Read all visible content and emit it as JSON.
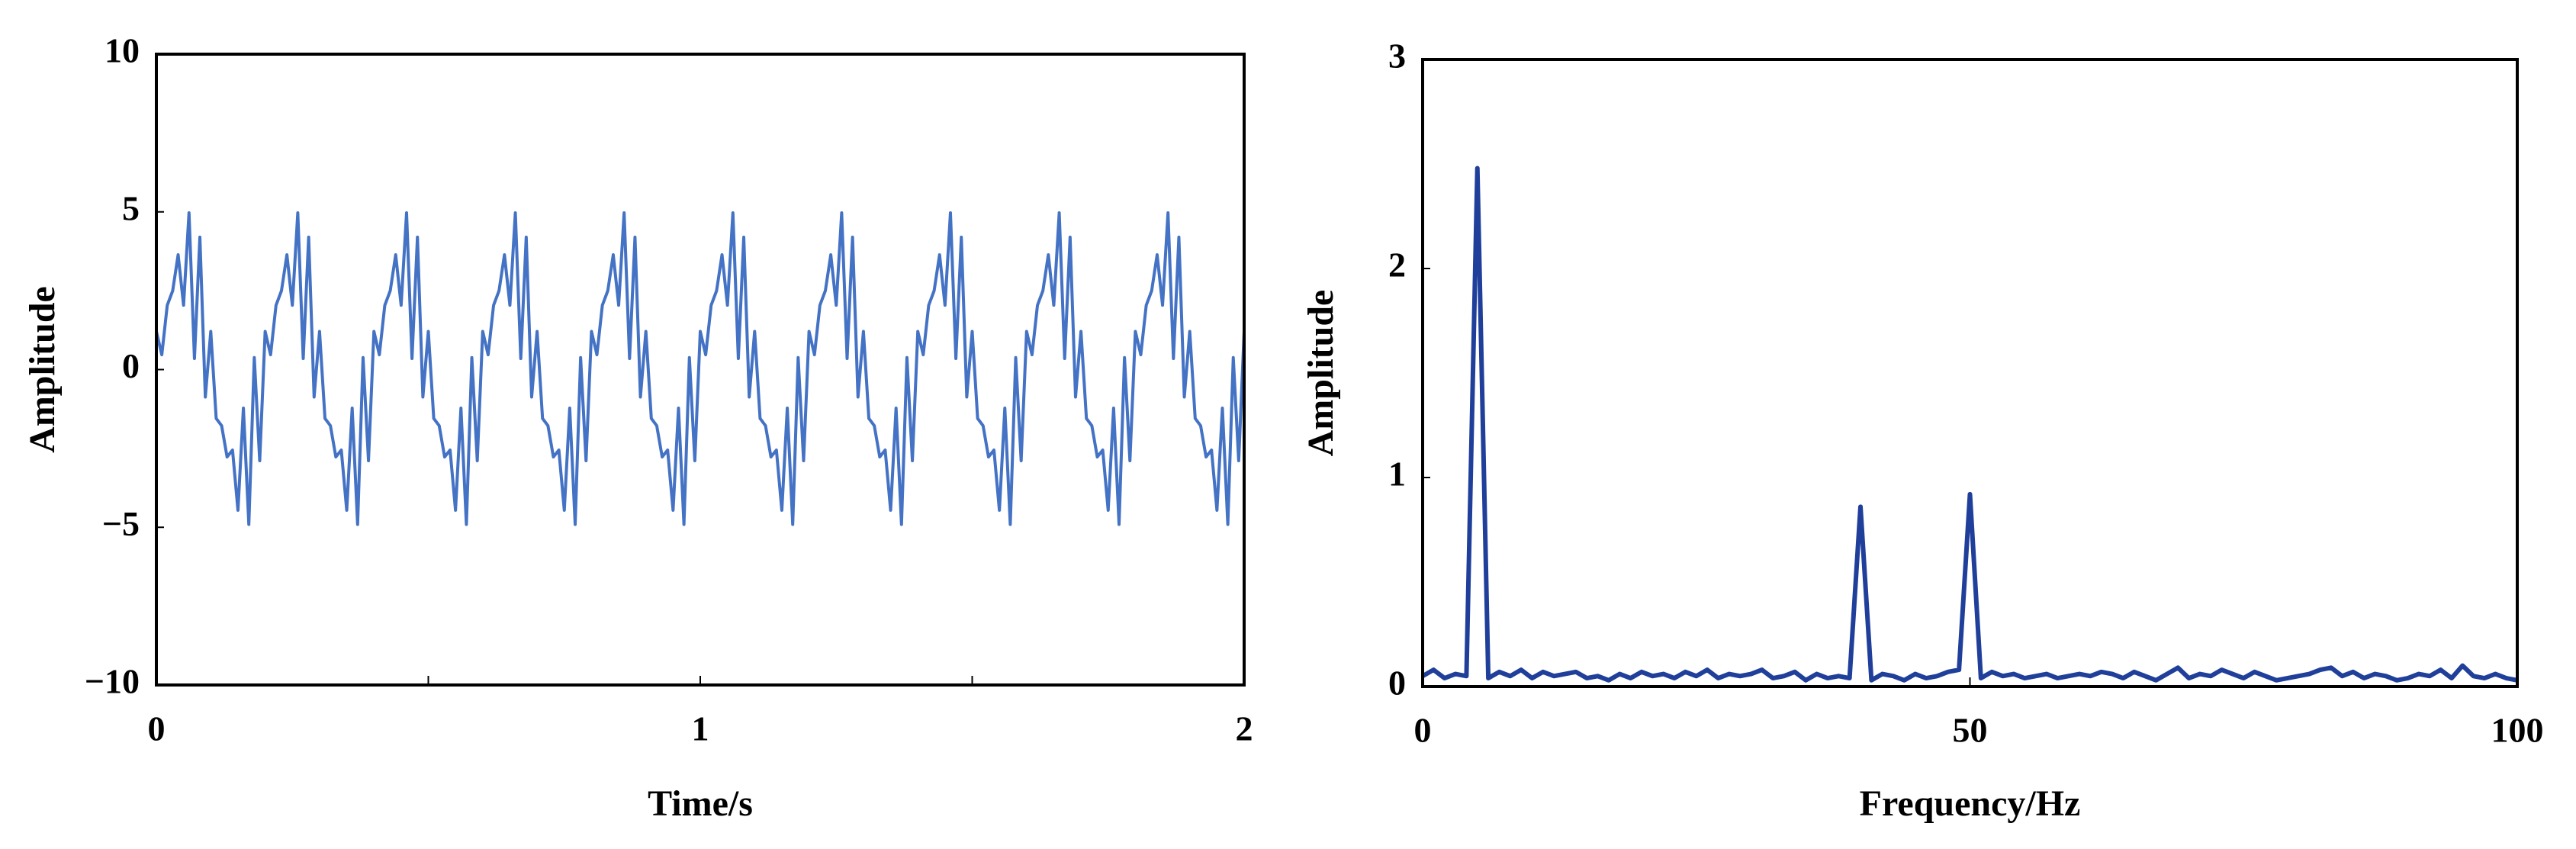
{
  "chart_data": [
    {
      "type": "line",
      "xlabel": "Time/s",
      "ylabel": "Amplitude",
      "xlim": [
        0,
        2
      ],
      "xticks": [
        0,
        1,
        2
      ],
      "xminorticks": [
        0.5,
        1.5
      ],
      "ylim": [
        -10,
        10
      ],
      "yticks": [
        {
          "value": -10,
          "label": "−10"
        },
        {
          "value": -5,
          "label": "−5"
        },
        0,
        5,
        10
      ],
      "series": [
        {
          "color": "#4472c4",
          "x": [
            0,
            0.01,
            0.02,
            0.03,
            0.04,
            0.05,
            0.06,
            0.07,
            0.08,
            0.09,
            0.1,
            0.11,
            0.12,
            0.13,
            0.14,
            0.15,
            0.16,
            0.17,
            0.18,
            0.19,
            0.2,
            0.21,
            0.22,
            0.23,
            0.24,
            0.25,
            0.26,
            0.27,
            0.28,
            0.29,
            0.3,
            0.31,
            0.32,
            0.33,
            0.34,
            0.35,
            0.36,
            0.37,
            0.38,
            0.39,
            0.4,
            0.41,
            0.42,
            0.43,
            0.44,
            0.45,
            0.46,
            0.47,
            0.48,
            0.49,
            0.5,
            0.51,
            0.52,
            0.53,
            0.54,
            0.55,
            0.56,
            0.57,
            0.58,
            0.59,
            0.6,
            0.61,
            0.62,
            0.63,
            0.64,
            0.65,
            0.66,
            0.67,
            0.68,
            0.69,
            0.7,
            0.71,
            0.72,
            0.73,
            0.74,
            0.75,
            0.76,
            0.77,
            0.78,
            0.79,
            0.8,
            0.81,
            0.82,
            0.83,
            0.84,
            0.85,
            0.86,
            0.87,
            0.88,
            0.89,
            0.9,
            0.91,
            0.92,
            0.93,
            0.94,
            0.95,
            0.96,
            0.97,
            0.98,
            0.99,
            1,
            1.01,
            1.02,
            1.03,
            1.04,
            1.05,
            1.06,
            1.07,
            1.08,
            1.09,
            1.1,
            1.11,
            1.12,
            1.13,
            1.14,
            1.15,
            1.16,
            1.17,
            1.18,
            1.19,
            1.2,
            1.21,
            1.22,
            1.23,
            1.24,
            1.25,
            1.26,
            1.27,
            1.28,
            1.29,
            1.3,
            1.31,
            1.32,
            1.33,
            1.34,
            1.35,
            1.36,
            1.37,
            1.38,
            1.39,
            1.4,
            1.41,
            1.42,
            1.43,
            1.44,
            1.45,
            1.46,
            1.47,
            1.48,
            1.49,
            1.5,
            1.51,
            1.52,
            1.53,
            1.54,
            1.55,
            1.56,
            1.57,
            1.58,
            1.59,
            1.6,
            1.61,
            1.62,
            1.63,
            1.64,
            1.65,
            1.66,
            1.67,
            1.68,
            1.69,
            1.7,
            1.71,
            1.72,
            1.73,
            1.74,
            1.75,
            1.76,
            1.77,
            1.78,
            1.79,
            1.8,
            1.81,
            1.82,
            1.83,
            1.84,
            1.85,
            1.86,
            1.87,
            1.88,
            1.89,
            1.9,
            1.91,
            1.92,
            1.93,
            1.94,
            1.95,
            1.96,
            1.97,
            1.98,
            1.99,
            2
          ],
          "values": [
            1.21,
            0.47,
            2.04,
            2.5,
            3.64,
            2.04,
            4.97,
            0.35,
            4.2,
            -0.87,
            1.21,
            -1.55,
            -1.78,
            -2.77,
            -2.55,
            -4.46,
            -1.22,
            -4.91,
            0.38,
            -2.89,
            1.21,
            0.47,
            2.04,
            2.5,
            3.64,
            2.04,
            4.97,
            0.35,
            4.2,
            -0.87,
            1.21,
            -1.55,
            -1.78,
            -2.77,
            -2.55,
            -4.46,
            -1.22,
            -4.91,
            0.38,
            -2.89,
            1.21,
            0.47,
            2.04,
            2.5,
            3.64,
            2.04,
            4.97,
            0.35,
            4.2,
            -0.87,
            1.21,
            -1.55,
            -1.78,
            -2.77,
            -2.55,
            -4.46,
            -1.22,
            -4.91,
            0.38,
            -2.89,
            1.21,
            0.47,
            2.04,
            2.5,
            3.64,
            2.04,
            4.97,
            0.35,
            4.2,
            -0.87,
            1.21,
            -1.55,
            -1.78,
            -2.77,
            -2.55,
            -4.46,
            -1.22,
            -4.91,
            0.38,
            -2.89,
            1.21,
            0.47,
            2.04,
            2.5,
            3.64,
            2.04,
            4.97,
            0.35,
            4.2,
            -0.87,
            1.21,
            -1.55,
            -1.78,
            -2.77,
            -2.55,
            -4.46,
            -1.22,
            -4.91,
            0.38,
            -2.89,
            1.21,
            0.47,
            2.04,
            2.5,
            3.64,
            2.04,
            4.97,
            0.35,
            4.2,
            -0.87,
            1.21,
            -1.55,
            -1.78,
            -2.77,
            -2.55,
            -4.46,
            -1.22,
            -4.91,
            0.38,
            -2.89,
            1.21,
            0.47,
            2.04,
            2.5,
            3.64,
            2.04,
            4.97,
            0.35,
            4.2,
            -0.87,
            1.21,
            -1.55,
            -1.78,
            -2.77,
            -2.55,
            -4.46,
            -1.22,
            -4.91,
            0.38,
            -2.89,
            1.21,
            0.47,
            2.04,
            2.5,
            3.64,
            2.04,
            4.97,
            0.35,
            4.2,
            -0.87,
            1.21,
            -1.55,
            -1.78,
            -2.77,
            -2.55,
            -4.46,
            -1.22,
            -4.91,
            0.38,
            -2.89,
            1.21,
            0.47,
            2.04,
            2.5,
            3.64,
            2.04,
            4.97,
            0.35,
            4.2,
            -0.87,
            1.21,
            -1.55,
            -1.78,
            -2.77,
            -2.55,
            -4.46,
            -1.22,
            -4.91,
            0.38,
            -2.89,
            1.21,
            0.47,
            2.04,
            2.5,
            3.64,
            2.04,
            4.97,
            0.35,
            4.2,
            -0.87,
            1.21,
            -1.55,
            -1.78,
            -2.77,
            -2.55,
            -4.46,
            -1.22,
            -4.91,
            0.38,
            -2.89,
            1.21
          ]
        }
      ]
    },
    {
      "type": "line",
      "xlabel": "Frequency/Hz",
      "ylabel": "Amplitude",
      "xlim": [
        0,
        100
      ],
      "xticks": [
        0,
        50,
        100
      ],
      "ylim": [
        0,
        3
      ],
      "yticks": [
        0,
        1,
        2,
        3
      ],
      "series": [
        {
          "color": "#1f3f9a",
          "x": [
            0,
            1,
            2,
            3,
            4,
            5,
            6,
            7,
            8,
            9,
            10,
            11,
            12,
            13,
            14,
            15,
            16,
            17,
            18,
            19,
            20,
            21,
            22,
            23,
            24,
            25,
            26,
            27,
            28,
            29,
            30,
            31,
            32,
            33,
            34,
            35,
            36,
            37,
            38,
            39,
            40,
            41,
            42,
            43,
            44,
            45,
            46,
            47,
            48,
            49,
            50,
            51,
            52,
            53,
            54,
            55,
            56,
            57,
            58,
            59,
            60,
            61,
            62,
            63,
            64,
            65,
            66,
            67,
            68,
            69,
            70,
            71,
            72,
            73,
            74,
            75,
            76,
            77,
            78,
            79,
            80,
            81,
            82,
            83,
            84,
            85,
            86,
            87,
            88,
            89,
            90,
            91,
            92,
            93,
            94,
            95,
            96,
            97,
            98,
            99,
            100
          ],
          "values": [
            0.05,
            0.08,
            0.04,
            0.06,
            0.05,
            2.48,
            0.04,
            0.07,
            0.05,
            0.08,
            0.04,
            0.07,
            0.05,
            0.06,
            0.07,
            0.04,
            0.05,
            0.03,
            0.06,
            0.04,
            0.07,
            0.05,
            0.06,
            0.04,
            0.07,
            0.05,
            0.08,
            0.04,
            0.06,
            0.05,
            0.06,
            0.08,
            0.04,
            0.05,
            0.07,
            0.03,
            0.06,
            0.04,
            0.05,
            0.04,
            0.86,
            0.03,
            0.06,
            0.05,
            0.03,
            0.06,
            0.04,
            0.05,
            0.07,
            0.08,
            0.92,
            0.04,
            0.07,
            0.05,
            0.06,
            0.04,
            0.05,
            0.06,
            0.04,
            0.05,
            0.06,
            0.05,
            0.07,
            0.06,
            0.04,
            0.07,
            0.05,
            0.03,
            0.06,
            0.09,
            0.04,
            0.06,
            0.05,
            0.08,
            0.06,
            0.04,
            0.07,
            0.05,
            0.03,
            0.04,
            0.05,
            0.06,
            0.08,
            0.09,
            0.05,
            0.07,
            0.04,
            0.06,
            0.05,
            0.03,
            0.04,
            0.06,
            0.05,
            0.08,
            0.04,
            0.1,
            0.05,
            0.04,
            0.06,
            0.04,
            0.03
          ]
        }
      ]
    }
  ]
}
